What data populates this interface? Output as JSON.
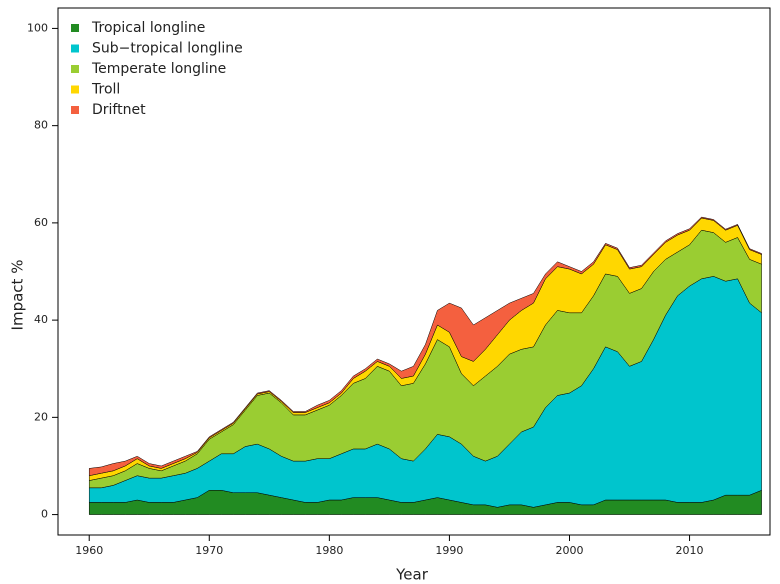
{
  "chart_data": {
    "type": "stacked-area",
    "x_label": "Year",
    "y_label": "Impact %",
    "x": [
      1960,
      1961,
      1962,
      1963,
      1964,
      1965,
      1966,
      1967,
      1968,
      1969,
      1970,
      1971,
      1972,
      1973,
      1974,
      1975,
      1976,
      1977,
      1978,
      1979,
      1980,
      1981,
      1982,
      1983,
      1984,
      1985,
      1986,
      1987,
      1988,
      1989,
      1990,
      1991,
      1992,
      1993,
      1994,
      1995,
      1996,
      1997,
      1998,
      1999,
      2000,
      2001,
      2002,
      2003,
      2004,
      2005,
      2006,
      2007,
      2008,
      2009,
      2010,
      2011,
      2012,
      2013,
      2014,
      2015,
      2016
    ],
    "series": [
      {
        "name": "Tropical longline",
        "color": "#228b22",
        "values": [
          2.5,
          2.5,
          2.5,
          2.5,
          3,
          2.5,
          2.5,
          2.5,
          3,
          3.5,
          5,
          5,
          4.5,
          4.5,
          4.5,
          4,
          3.5,
          3,
          2.5,
          2.5,
          3,
          3,
          3.5,
          3.5,
          3.5,
          3,
          2.5,
          2.5,
          3,
          3.5,
          3,
          2.5,
          2,
          2,
          1.5,
          2,
          2,
          1.5,
          2,
          2.5,
          2.5,
          2,
          2,
          3,
          3,
          3,
          3,
          3,
          3,
          2.5,
          2.5,
          2.5,
          3,
          4,
          4,
          4,
          5
        ]
      },
      {
        "name": "Sub−tropical longline",
        "color": "#00c5cd",
        "values": [
          3,
          3,
          3.5,
          4.5,
          5,
          5,
          5,
          5.5,
          5.5,
          6,
          6,
          7.5,
          8,
          9.5,
          10,
          9.5,
          8.5,
          8,
          8.5,
          9,
          8.5,
          9.5,
          10,
          10,
          11,
          10.5,
          9,
          8.5,
          10.5,
          13,
          13,
          12,
          10,
          9,
          10.5,
          12.5,
          15,
          16.5,
          20,
          22,
          22.5,
          24.5,
          28,
          31.5,
          30.5,
          27.5,
          28.5,
          33,
          38,
          42.5,
          44.5,
          46,
          46,
          44,
          44.5,
          39.5,
          36.5
        ]
      },
      {
        "name": "Temperate longline",
        "color": "#9acd32",
        "values": [
          1.5,
          2,
          2,
          2,
          2.5,
          2,
          1.5,
          2,
          2.5,
          3,
          4.5,
          4.5,
          6,
          7.5,
          10,
          11.5,
          11,
          9.5,
          9.5,
          10,
          11,
          12,
          13.5,
          14.5,
          16,
          16,
          15,
          16,
          17.5,
          19.5,
          18.5,
          14.5,
          14.5,
          17.5,
          18.5,
          18.5,
          17,
          16.5,
          17,
          17.5,
          16.5,
          15,
          15,
          15,
          15.5,
          15,
          15,
          14,
          11.5,
          9,
          8.5,
          10,
          9,
          8,
          8.5,
          9,
          10
        ]
      },
      {
        "name": "Troll",
        "color": "#ffd700",
        "values": [
          1,
          1,
          1,
          1,
          1,
          0.5,
          0.5,
          0.5,
          0.5,
          0.3,
          0.3,
          0.3,
          0.3,
          0.3,
          0.3,
          0.3,
          0.3,
          0.5,
          0.5,
          0.5,
          0.5,
          0.5,
          1,
          1.5,
          1,
          1,
          1.5,
          1.5,
          2,
          3,
          3,
          3.5,
          5,
          5.5,
          6.5,
          7,
          8,
          9,
          9.5,
          9,
          9,
          8,
          6.5,
          6,
          5.5,
          5,
          4.5,
          3.5,
          3.5,
          3.5,
          3,
          2.5,
          2.5,
          2.5,
          2.5,
          2,
          2
        ]
      },
      {
        "name": "Driftnet",
        "color": "#f4603f",
        "values": [
          1.5,
          1.3,
          1.5,
          1,
          0.5,
          0.5,
          0.5,
          0.5,
          0.5,
          0.2,
          0.2,
          0.2,
          0.2,
          0.2,
          0.2,
          0.2,
          0.2,
          0.2,
          0.2,
          0.5,
          0.5,
          0.5,
          0.5,
          0.5,
          0.5,
          0.5,
          1.5,
          2,
          2,
          3,
          6,
          10,
          7.5,
          6.5,
          5,
          3.5,
          2.5,
          2,
          1,
          1,
          0.5,
          0.5,
          0.5,
          0.3,
          0.3,
          0.3,
          0.3,
          0.3,
          0.3,
          0.3,
          0.3,
          0.2,
          0.2,
          0.2,
          0.2,
          0.2,
          0.2
        ]
      }
    ],
    "xlim": [
      1957.4,
      2016.7
    ],
    "xticks": [
      1960,
      1970,
      1980,
      1990,
      2000,
      2010
    ],
    "ylim": [
      -4.2,
      104.2
    ],
    "yticks": [
      0,
      20,
      40,
      60,
      80,
      100
    ],
    "legend": "top-left"
  }
}
